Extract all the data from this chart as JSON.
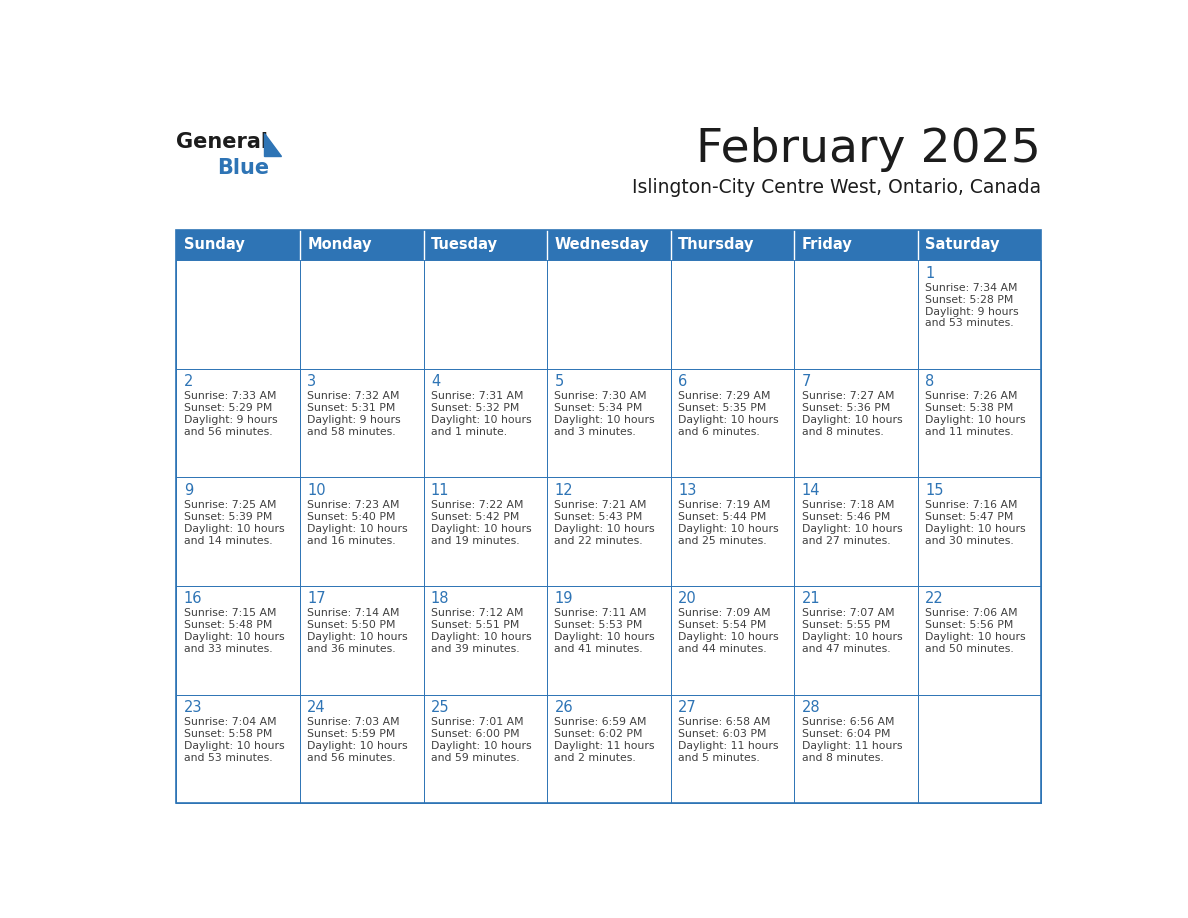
{
  "title": "February 2025",
  "subtitle": "Islington-City Centre West, Ontario, Canada",
  "days_of_week": [
    "Sunday",
    "Monday",
    "Tuesday",
    "Wednesday",
    "Thursday",
    "Friday",
    "Saturday"
  ],
  "header_bg": "#2E74B5",
  "header_text": "#FFFFFF",
  "cell_bg": "#FFFFFF",
  "day_num_color": "#2E74B5",
  "text_color": "#404040",
  "border_color": "#2E74B5",
  "calendar_data": [
    [
      null,
      null,
      null,
      null,
      null,
      null,
      {
        "day": 1,
        "sunrise": "7:34 AM",
        "sunset": "5:28 PM",
        "daylight": "9 hours\nand 53 minutes."
      }
    ],
    [
      {
        "day": 2,
        "sunrise": "7:33 AM",
        "sunset": "5:29 PM",
        "daylight": "9 hours\nand 56 minutes."
      },
      {
        "day": 3,
        "sunrise": "7:32 AM",
        "sunset": "5:31 PM",
        "daylight": "9 hours\nand 58 minutes."
      },
      {
        "day": 4,
        "sunrise": "7:31 AM",
        "sunset": "5:32 PM",
        "daylight": "10 hours\nand 1 minute."
      },
      {
        "day": 5,
        "sunrise": "7:30 AM",
        "sunset": "5:34 PM",
        "daylight": "10 hours\nand 3 minutes."
      },
      {
        "day": 6,
        "sunrise": "7:29 AM",
        "sunset": "5:35 PM",
        "daylight": "10 hours\nand 6 minutes."
      },
      {
        "day": 7,
        "sunrise": "7:27 AM",
        "sunset": "5:36 PM",
        "daylight": "10 hours\nand 8 minutes."
      },
      {
        "day": 8,
        "sunrise": "7:26 AM",
        "sunset": "5:38 PM",
        "daylight": "10 hours\nand 11 minutes."
      }
    ],
    [
      {
        "day": 9,
        "sunrise": "7:25 AM",
        "sunset": "5:39 PM",
        "daylight": "10 hours\nand 14 minutes."
      },
      {
        "day": 10,
        "sunrise": "7:23 AM",
        "sunset": "5:40 PM",
        "daylight": "10 hours\nand 16 minutes."
      },
      {
        "day": 11,
        "sunrise": "7:22 AM",
        "sunset": "5:42 PM",
        "daylight": "10 hours\nand 19 minutes."
      },
      {
        "day": 12,
        "sunrise": "7:21 AM",
        "sunset": "5:43 PM",
        "daylight": "10 hours\nand 22 minutes."
      },
      {
        "day": 13,
        "sunrise": "7:19 AM",
        "sunset": "5:44 PM",
        "daylight": "10 hours\nand 25 minutes."
      },
      {
        "day": 14,
        "sunrise": "7:18 AM",
        "sunset": "5:46 PM",
        "daylight": "10 hours\nand 27 minutes."
      },
      {
        "day": 15,
        "sunrise": "7:16 AM",
        "sunset": "5:47 PM",
        "daylight": "10 hours\nand 30 minutes."
      }
    ],
    [
      {
        "day": 16,
        "sunrise": "7:15 AM",
        "sunset": "5:48 PM",
        "daylight": "10 hours\nand 33 minutes."
      },
      {
        "day": 17,
        "sunrise": "7:14 AM",
        "sunset": "5:50 PM",
        "daylight": "10 hours\nand 36 minutes."
      },
      {
        "day": 18,
        "sunrise": "7:12 AM",
        "sunset": "5:51 PM",
        "daylight": "10 hours\nand 39 minutes."
      },
      {
        "day": 19,
        "sunrise": "7:11 AM",
        "sunset": "5:53 PM",
        "daylight": "10 hours\nand 41 minutes."
      },
      {
        "day": 20,
        "sunrise": "7:09 AM",
        "sunset": "5:54 PM",
        "daylight": "10 hours\nand 44 minutes."
      },
      {
        "day": 21,
        "sunrise": "7:07 AM",
        "sunset": "5:55 PM",
        "daylight": "10 hours\nand 47 minutes."
      },
      {
        "day": 22,
        "sunrise": "7:06 AM",
        "sunset": "5:56 PM",
        "daylight": "10 hours\nand 50 minutes."
      }
    ],
    [
      {
        "day": 23,
        "sunrise": "7:04 AM",
        "sunset": "5:58 PM",
        "daylight": "10 hours\nand 53 minutes."
      },
      {
        "day": 24,
        "sunrise": "7:03 AM",
        "sunset": "5:59 PM",
        "daylight": "10 hours\nand 56 minutes."
      },
      {
        "day": 25,
        "sunrise": "7:01 AM",
        "sunset": "6:00 PM",
        "daylight": "10 hours\nand 59 minutes."
      },
      {
        "day": 26,
        "sunrise": "6:59 AM",
        "sunset": "6:02 PM",
        "daylight": "11 hours\nand 2 minutes."
      },
      {
        "day": 27,
        "sunrise": "6:58 AM",
        "sunset": "6:03 PM",
        "daylight": "11 hours\nand 5 minutes."
      },
      {
        "day": 28,
        "sunrise": "6:56 AM",
        "sunset": "6:04 PM",
        "daylight": "11 hours\nand 8 minutes."
      },
      null
    ]
  ]
}
